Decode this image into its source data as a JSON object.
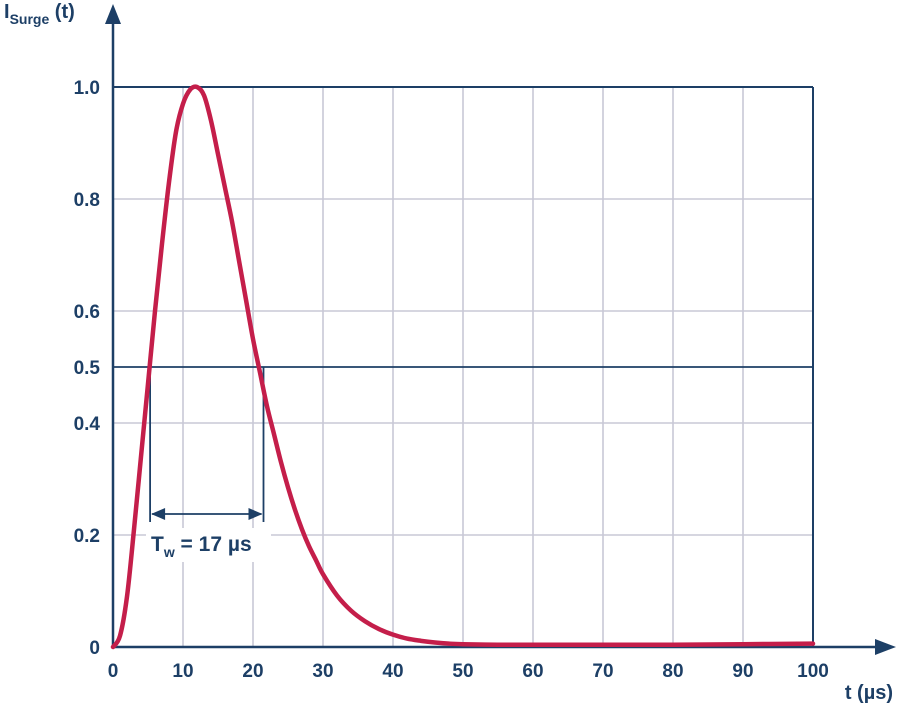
{
  "chart_data": {
    "type": "line",
    "y_axis_title": {
      "main": "I",
      "subscript": "Surge",
      "suffix": " (t)"
    },
    "x_axis_title": "t (µs)",
    "xlim": [
      0,
      100
    ],
    "ylim": [
      0,
      1.0
    ],
    "x_ticks": [
      0,
      10,
      20,
      30,
      40,
      50,
      60,
      70,
      80,
      90,
      100
    ],
    "x_tick_labels": [
      "0",
      "10",
      "20",
      "30",
      "40",
      "50",
      "60",
      "70",
      "80",
      "90",
      "100"
    ],
    "y_ticks": [
      0,
      0.2,
      0.4,
      0.5,
      0.6,
      0.8,
      1.0
    ],
    "y_tick_labels": [
      "0",
      "0.2",
      "0.4",
      "0.5",
      "0.6",
      "0.8",
      "1.0"
    ],
    "grid": true,
    "half_value_line": 0.5,
    "pulse_width": {
      "start": 5.3,
      "end": 21.5,
      "label_main": "T",
      "label_sub": "w",
      "label_rest": " = 17 µs"
    },
    "series": [
      {
        "color": "#c41e4a",
        "x": [
          0,
          1,
          2,
          3,
          4,
          5,
          6,
          7,
          8,
          9,
          10,
          11,
          12,
          13,
          14,
          15,
          16,
          17,
          18,
          19,
          20,
          21,
          22,
          23,
          24,
          25,
          26,
          27,
          28,
          29,
          30,
          32,
          34,
          36,
          38,
          40,
          42,
          44,
          46,
          48,
          50,
          55,
          60,
          70,
          80,
          90,
          100
        ],
        "y": [
          0,
          0.02,
          0.09,
          0.21,
          0.34,
          0.47,
          0.6,
          0.72,
          0.83,
          0.92,
          0.97,
          0.995,
          1.0,
          0.985,
          0.94,
          0.88,
          0.82,
          0.76,
          0.69,
          0.62,
          0.55,
          0.49,
          0.43,
          0.38,
          0.33,
          0.285,
          0.245,
          0.21,
          0.18,
          0.155,
          0.13,
          0.092,
          0.065,
          0.046,
          0.032,
          0.022,
          0.015,
          0.011,
          0.008,
          0.006,
          0.005,
          0.004,
          0.004,
          0.004,
          0.004,
          0.005,
          0.006
        ]
      }
    ]
  },
  "colors": {
    "axis": "#1d3f66",
    "grid": "#c8c8d6",
    "curve": "#c41e4a"
  }
}
